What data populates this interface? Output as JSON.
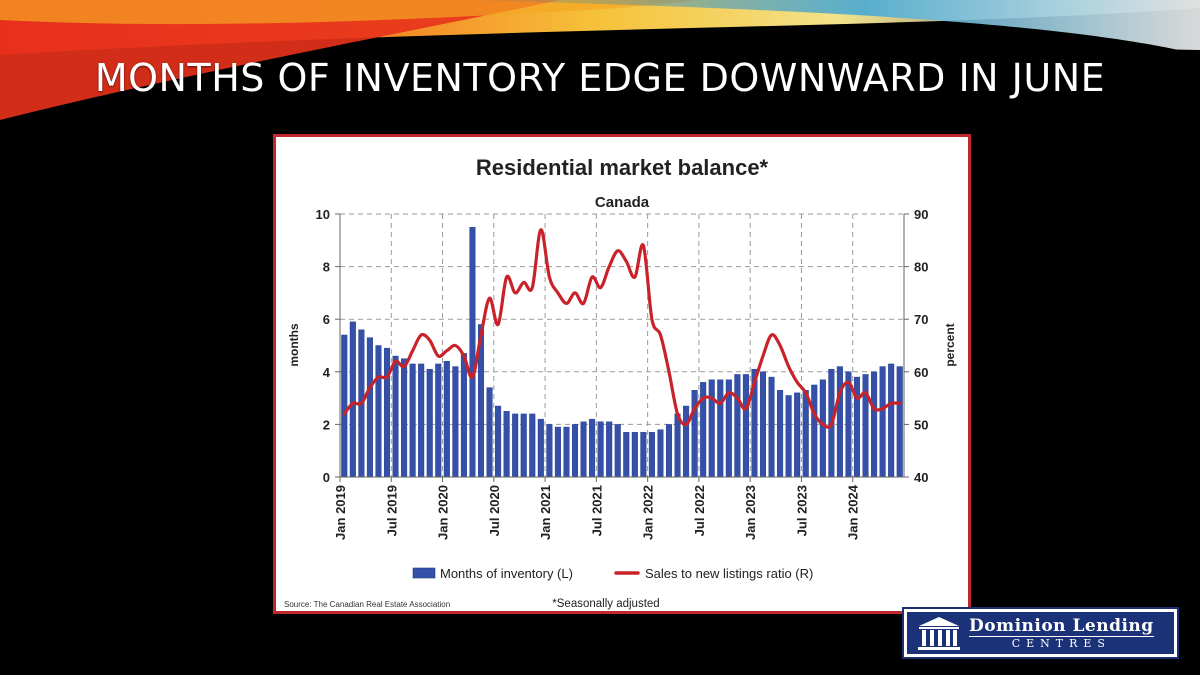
{
  "slide": {
    "title": "MONTHS OF INVENTORY EDGE DOWNWARD IN JUNE"
  },
  "logo": {
    "line1": "Dominion Lending",
    "line2": "CENTRES",
    "icon": "building-columns-icon"
  },
  "colors": {
    "bar": "#3550a8",
    "bar_edge": "#1e3a8a",
    "line": "#c8232a",
    "frame": "#c0282d",
    "logo_bg": "#1c3278"
  },
  "chart_data": {
    "type": "bar",
    "title": "Residential market balance*",
    "subtitle": "Canada",
    "ylabel": "months",
    "y2label": "percent",
    "ylim": [
      0,
      10
    ],
    "y2lim": [
      40,
      90
    ],
    "yticks": [
      0,
      2,
      4,
      6,
      8,
      10
    ],
    "y2ticks": [
      40,
      50,
      60,
      70,
      80,
      90
    ],
    "grid": true,
    "legend_position": "bottom",
    "x_tick_labels": [
      "Jan 2019",
      "Jul 2019",
      "Jan 2020",
      "Jul 2020",
      "Jan 2021",
      "Jul 2021",
      "Jan 2022",
      "Jul 2022",
      "Jan 2023",
      "Jul 2023",
      "Jan 2024"
    ],
    "x_start": "2019-01",
    "x_tick_every": 6,
    "source": "Source: The Canadian Real Estate Association",
    "footnote": "*Seasonally adjusted",
    "series": [
      {
        "name": "Months of inventory (L)",
        "kind": "bar",
        "axis": "left",
        "values": [
          5.4,
          5.9,
          5.6,
          5.3,
          5.0,
          4.9,
          4.6,
          4.5,
          4.3,
          4.3,
          4.1,
          4.3,
          4.4,
          4.2,
          4.7,
          9.5,
          5.8,
          3.4,
          2.7,
          2.5,
          2.4,
          2.4,
          2.4,
          2.2,
          2.0,
          1.9,
          1.9,
          2.0,
          2.1,
          2.2,
          2.1,
          2.1,
          2.0,
          1.7,
          1.7,
          1.7,
          1.7,
          1.8,
          2.0,
          2.4,
          2.7,
          3.3,
          3.6,
          3.7,
          3.7,
          3.7,
          3.9,
          3.9,
          4.1,
          4.0,
          3.8,
          3.3,
          3.1,
          3.2,
          3.3,
          3.5,
          3.7,
          4.1,
          4.2,
          4.0,
          3.8,
          3.9,
          4.0,
          4.2,
          4.3,
          4.2
        ]
      },
      {
        "name": "Sales to new listings ratio (R)",
        "kind": "line",
        "axis": "right",
        "values": [
          52,
          54,
          54,
          57,
          59,
          59,
          62,
          61,
          64,
          67,
          66,
          63,
          64,
          65,
          63,
          59,
          67,
          74,
          69,
          78,
          75,
          77,
          76,
          87,
          78,
          75,
          73,
          75,
          73,
          78,
          76,
          80,
          83,
          81,
          78,
          84,
          70,
          67,
          60,
          52,
          50,
          53,
          55,
          55,
          54,
          56,
          55,
          53,
          58,
          63,
          67,
          65,
          61,
          58,
          56,
          52,
          50,
          50,
          56,
          58,
          55,
          56,
          53,
          53,
          54,
          54
        ]
      }
    ]
  }
}
